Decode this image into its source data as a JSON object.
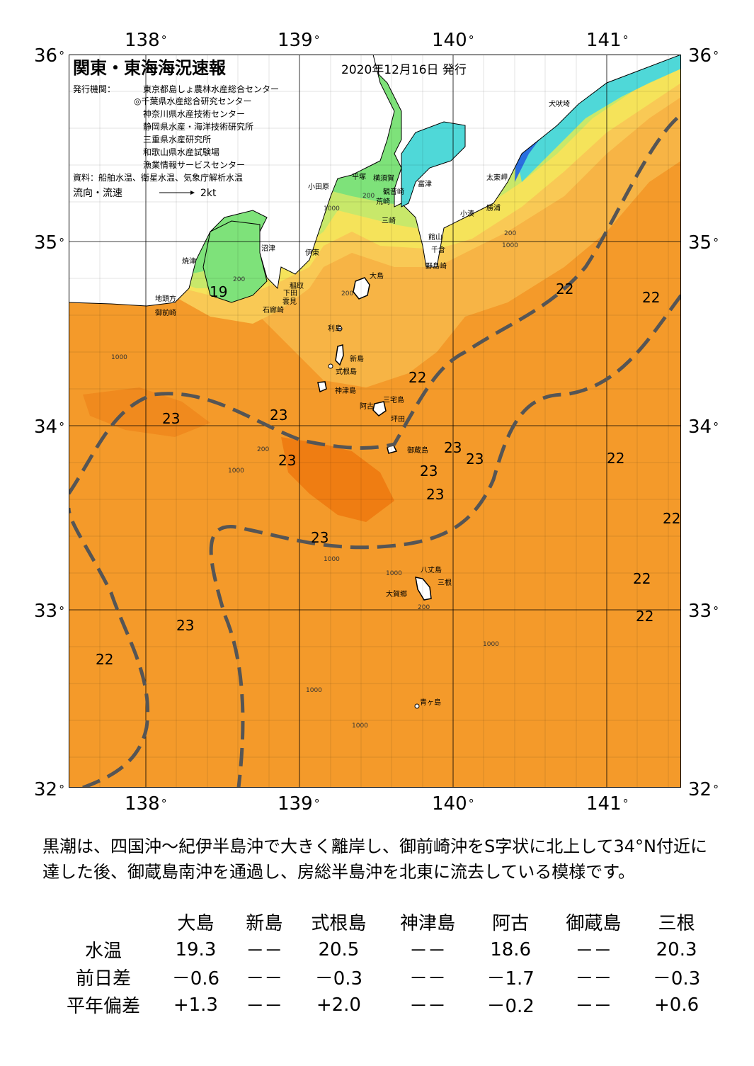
{
  "header": {
    "title": "関東・東海海況速報",
    "issue_date": "2020年12月16日 発行",
    "publisher_label": "発行機関：",
    "publishers": [
      "東京都島しょ農林水産総合センター",
      "◎千葉県水産総合研究センター",
      "神奈川県水産技術センター",
      "静岡県水産・海洋技術研究所",
      "三重県水産研究所",
      "和歌山県水産試験場",
      "漁業情報サービスセンター"
    ],
    "source": "資料：船舶水温、衛星水温、気象庁解析水温",
    "flow_label": "流向・流速",
    "flow_unit": "2kt"
  },
  "axes": {
    "lon_labels": [
      "138",
      "139",
      "140",
      "141"
    ],
    "lat_labels": [
      "36",
      "35",
      "34",
      "33",
      "32"
    ],
    "degree": "°"
  },
  "places": {
    "inubosaki": "犬吠埼",
    "taitomisaki": "太東岬",
    "katsuura": "勝浦",
    "kominato": "小湊",
    "tateyama": "館山",
    "chikura": "千倉",
    "nojimazaki": "野島崎",
    "futtsu": "富津",
    "yokosuka": "横須賀",
    "kannonzaki": "観音崎",
    "arasaki": "荒崎",
    "misaki": "三崎",
    "hiratsuka": "平塚",
    "odawara": "小田原",
    "numazu": "沼津",
    "ito": "伊東",
    "yaizu": "焼津",
    "inatori": "稲取",
    "shimoda": "下田",
    "mera": "雲見",
    "irozaki": "石廊崎",
    "jitogata": "地頭方",
    "omaezaki": "御前崎",
    "oshima": "大島",
    "toshima": "利島",
    "niijima": "新島",
    "shikinejima": "式根島",
    "kozushima": "神津島",
    "miyakejima": "三宅島",
    "ako": "阿古",
    "tsubota": "坪田",
    "mikurajima": "御蔵島",
    "hachijojima": "八丈島",
    "mitsune": "三根",
    "okago": "大賀郷",
    "aogashima": "青ヶ島"
  },
  "temperature_labels": [
    {
      "value": "19"
    },
    {
      "value": "22"
    },
    {
      "value": "22"
    },
    {
      "value": "22"
    },
    {
      "value": "23"
    },
    {
      "value": "23"
    },
    {
      "value": "23"
    },
    {
      "value": "23"
    },
    {
      "value": "23"
    },
    {
      "value": "23"
    },
    {
      "value": "23"
    },
    {
      "value": "22"
    },
    {
      "value": "22"
    },
    {
      "value": "23"
    },
    {
      "value": "22"
    },
    {
      "value": "22"
    },
    {
      "value": "22"
    },
    {
      "value": "23"
    }
  ],
  "depth_labels": [
    "200",
    "1000"
  ],
  "colors": {
    "deep_orange": "#ef7d12",
    "orange": "#f49a2a",
    "light_orange": "#f7b445",
    "yellow_orange": "#f9c955",
    "yellow": "#f5e35a",
    "yellow_green": "#c8e86a",
    "green": "#7ee27a",
    "cyan": "#4fd8d8",
    "blue": "#2a6fe0",
    "kuroshio_axis": "#555555"
  },
  "summary": "黒潮は、四国沖～紀伊半島沖で大きく離岸し、御前崎沖をS字状に北上して34°N付近に達した後、御蔵島南沖を通過し、房総半島沖を北東に流去している模様です。",
  "table": {
    "stations": [
      "大島",
      "新島",
      "式根島",
      "神津島",
      "阿古",
      "御蔵島",
      "三根"
    ],
    "rows": [
      {
        "label": "水温",
        "values": [
          "19.3",
          "－－",
          "20.5",
          "－－",
          "18.6",
          "－－",
          "20.3"
        ]
      },
      {
        "label": "前日差",
        "values": [
          "－0.6",
          "－－",
          "－0.3",
          "－－",
          "－1.7",
          "－－",
          "－0.3"
        ]
      },
      {
        "label": "平年偏差",
        "values": [
          "+1.3",
          "－－",
          "+2.0",
          "－－",
          "－0.2",
          "－－",
          "+0.6"
        ]
      }
    ]
  }
}
